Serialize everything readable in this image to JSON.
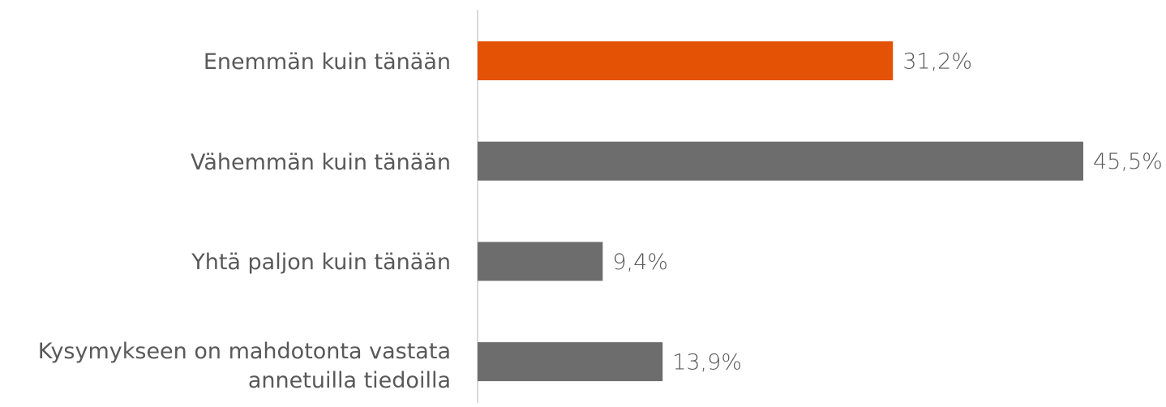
{
  "chart_data": {
    "type": "hbar",
    "categories": [
      "Enemmän kuin tänään",
      "Vähemmän kuin tänään",
      "Yhtä paljon kuin tänään",
      "Kysymykseen on mahdotonta vastata annetuilla tiedoilla"
    ],
    "values": [
      31.2,
      45.5,
      9.4,
      13.9
    ],
    "value_labels": [
      "31,2%",
      "45,5%",
      "9,4%",
      "13,9%"
    ],
    "colors": [
      "#e35205",
      "#6d6d6d",
      "#6d6d6d",
      "#6d6d6d"
    ]
  }
}
